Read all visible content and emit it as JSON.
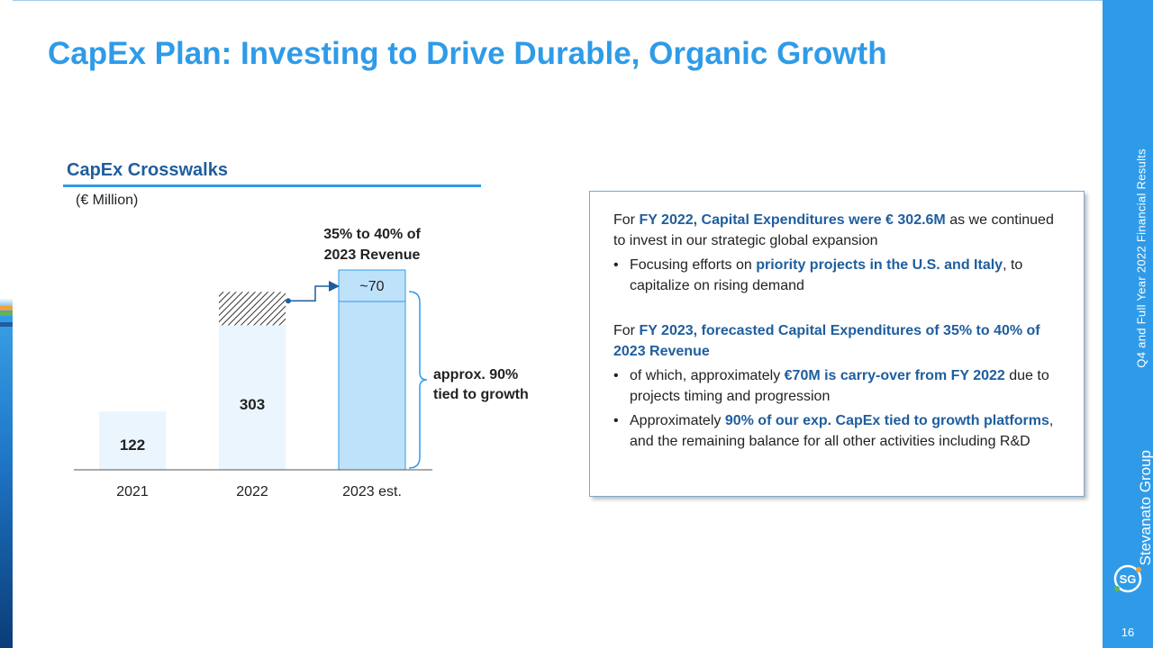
{
  "page": {
    "title": "CapEx Plan: Investing to Drive Durable, Organic Growth",
    "period_label": "Q4 and Full Year 2022 Financial Results",
    "brand": "Stevanato Group",
    "page_number": "16"
  },
  "section": {
    "title": "CapEx Crosswalks",
    "unit": "(€ Million)"
  },
  "chart_data": {
    "type": "bar",
    "title": "CapEx Crosswalks",
    "ylabel": "(€ Million)",
    "categories": [
      "2021",
      "2022",
      "2023 est."
    ],
    "values": [
      122,
      303,
      null
    ],
    "value_labels": [
      "122",
      "303",
      ""
    ],
    "carryover": {
      "value": 70,
      "label": "~70",
      "source_category": "2022",
      "target_category": "2023 est."
    },
    "annotations": {
      "top_label": "35% to 40% of 2023 Revenue",
      "top_label_lines": [
        "35% to 40% of",
        "2023 Revenue"
      ],
      "brace_label": "approx. 90% tied to growth",
      "brace_label_lines": [
        "approx. 90%",
        "tied to growth"
      ]
    },
    "colors": {
      "bar_fill": "#eaf5fd",
      "est_fill": "#bfe2fb",
      "est_border": "#2f9be8",
      "arrow": "#1f5e9e"
    }
  },
  "info": {
    "p1": {
      "pre": "For ",
      "hl": "FY 2022, Capital Expenditures were € 302.6M",
      "post": " as we continued to invest in our strategic global expansion"
    },
    "b1": {
      "pre": "Focusing efforts on ",
      "hl": "priority projects in the U.S. and Italy",
      "post": ", to capitalize on rising demand"
    },
    "p2": {
      "pre": "For ",
      "hl": "FY 2023, forecasted Capital Expenditures of 35% to 40% of 2023 Revenue",
      "post": ""
    },
    "b2": {
      "pre": "of which, approximately ",
      "hl": "€70M is carry-over from FY 2022",
      "post": " due to projects timing and progression"
    },
    "b3": {
      "pre": "Approximately ",
      "hl": "90% of our exp. CapEx tied to growth platforms",
      "post": ", and the remaining balance for all other activities including R&D"
    }
  },
  "theme": {
    "accent": "#2f9be8",
    "dark_blue": "#1f5e9e"
  }
}
